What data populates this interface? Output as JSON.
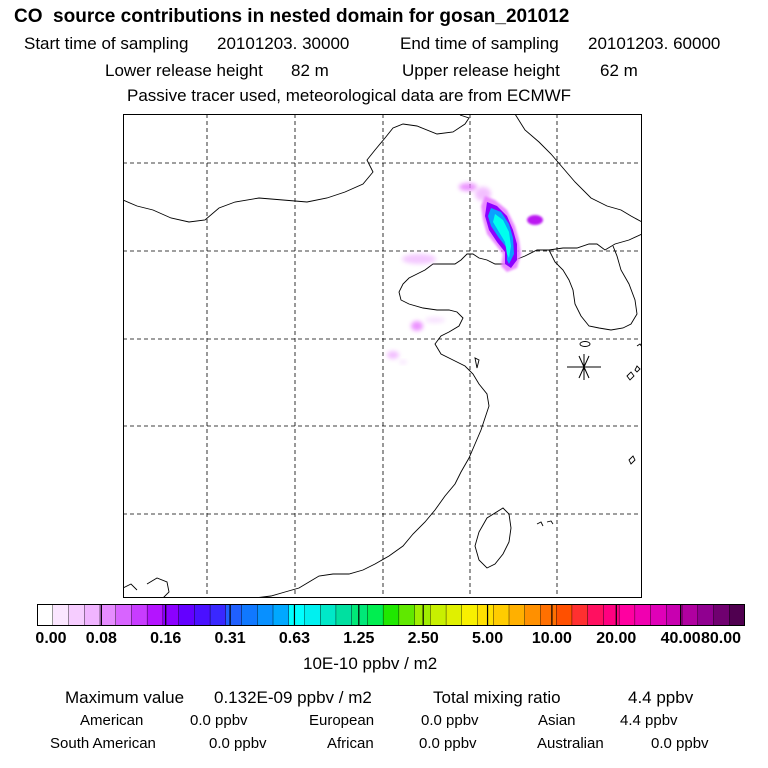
{
  "header": {
    "title": "CO  source contributions in nested domain for gosan_201012",
    "start_label": "Start time of sampling",
    "start_value": "20101203. 30000",
    "end_label": "End time of sampling",
    "end_value": "20101203. 60000",
    "lower_label": "Lower release height",
    "lower_value": "82 m",
    "upper_label": "Upper release height",
    "upper_value": "62 m",
    "tracer_note": "Passive tracer used, meteorological data are from ECMWF"
  },
  "map": {
    "receptor_marker": "star-icon",
    "plume_colors": [
      "#e880ff",
      "#b400f0",
      "#5a28ff",
      "#0aa0ff",
      "#00ffee"
    ]
  },
  "colorbar": {
    "colors": [
      "#ffffff",
      "#fbe6ff",
      "#f6cdff",
      "#f0b4ff",
      "#e68cff",
      "#d864ff",
      "#c83cff",
      "#b414ff",
      "#8c00ff",
      "#6400ff",
      "#4a10ff",
      "#3a28ff",
      "#2060ff",
      "#1078ff",
      "#0890ff",
      "#00a8ff",
      "#00ffff",
      "#00f0f0",
      "#00e8c8",
      "#00e0a0",
      "#00e878",
      "#00ee50",
      "#20e800",
      "#60e800",
      "#a0ee00",
      "#c8f000",
      "#e0f000",
      "#f8f000",
      "#ffe000",
      "#ffcc00",
      "#ffb000",
      "#ff9000",
      "#ff7000",
      "#ff5000",
      "#ff3030",
      "#ff1060",
      "#ff0080",
      "#ff00a0",
      "#f000b0",
      "#e000b8",
      "#c800b0",
      "#b000a0",
      "#900090",
      "#700070",
      "#500050"
    ],
    "tick_labels": [
      "0.00",
      "0.08",
      "0.16",
      "0.31",
      "0.63",
      "1.25",
      "2.50",
      "5.00",
      "10.00",
      "20.00",
      "40.00",
      "80.00"
    ],
    "unit": "10E-10 ppbv / m2"
  },
  "summary": {
    "max_label": "Maximum value",
    "max_value": "0.132E-09 ppbv / m2",
    "total_label": "Total mixing ratio",
    "total_value": "4.4 ppbv",
    "american_label": "American",
    "american_value": "0.0 ppbv",
    "european_label": "European",
    "european_value": "0.0 ppbv",
    "asian_label": "Asian",
    "asian_value": "4.4 ppbv",
    "south_american_label": "South American",
    "south_american_value": "0.0 ppbv",
    "african_label": "African",
    "african_value": "0.0 ppbv",
    "australian_label": "Australian",
    "australian_value": "0.0 ppbv"
  }
}
